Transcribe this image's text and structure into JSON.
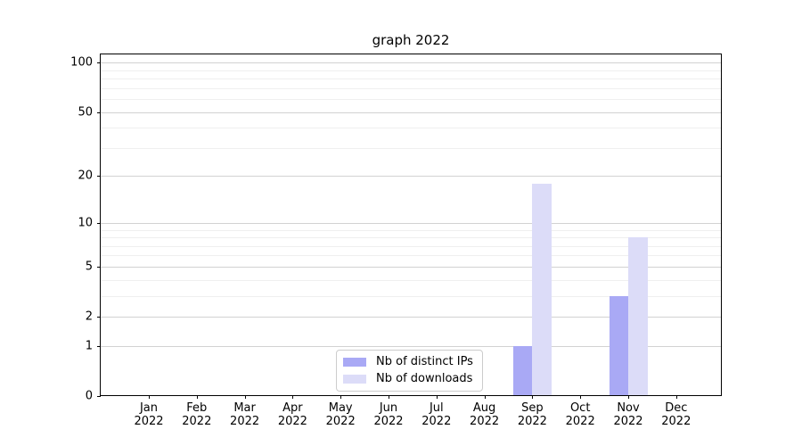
{
  "chart_data": {
    "type": "bar",
    "title": "graph 2022",
    "x_year": "2022",
    "categories": [
      "Jan",
      "Feb",
      "Mar",
      "Apr",
      "May",
      "Jun",
      "Jul",
      "Aug",
      "Sep",
      "Oct",
      "Nov",
      "Dec"
    ],
    "series": [
      {
        "name": "Nb of distinct IPs",
        "color": "#a9a9f5",
        "values": [
          0,
          0,
          0,
          0,
          0,
          0,
          0,
          0,
          1,
          0,
          3,
          0
        ]
      },
      {
        "name": "Nb of downloads",
        "color": "#dcdcf8",
        "values": [
          0,
          0,
          0,
          0,
          0,
          0,
          0,
          0,
          18,
          0,
          8,
          0
        ]
      }
    ],
    "yscale": "log1p",
    "ylim": [
      0,
      113
    ],
    "y_major_ticks": [
      0,
      1,
      2,
      5,
      10,
      20,
      50,
      100
    ],
    "y_minor_ticks": [
      3,
      4,
      6,
      7,
      8,
      9,
      30,
      40,
      60,
      70,
      80,
      90
    ],
    "grid": true,
    "legend_position": "lower center",
    "colors": {
      "grid_major": "#d2d2d2",
      "grid_minor": "#efefef",
      "spine": "#000000",
      "background": "#ffffff"
    }
  }
}
